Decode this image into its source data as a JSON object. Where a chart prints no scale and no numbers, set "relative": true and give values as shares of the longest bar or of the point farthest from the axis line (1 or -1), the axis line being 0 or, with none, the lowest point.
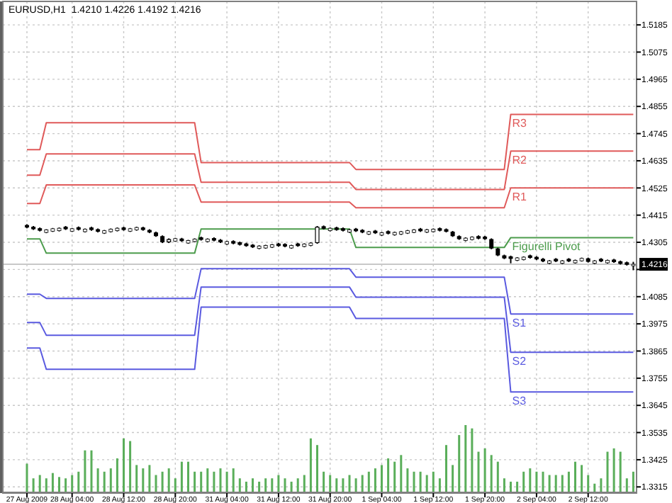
{
  "chart_data": [
    {
      "type": "candlestick",
      "title": "EURUSD,H1  1.4210 1.4226 1.4192 1.4216",
      "categories": [
        "27 Aug 2009",
        null,
        null,
        null,
        null,
        null,
        null,
        "28 Aug 04:00",
        null,
        null,
        null,
        null,
        null,
        null,
        null,
        "28 Aug 12:00",
        null,
        null,
        null,
        null,
        null,
        null,
        null,
        "28 Aug 20:00",
        null,
        null,
        null,
        null,
        null,
        null,
        null,
        "31 Aug 04:00",
        null,
        null,
        null,
        null,
        null,
        null,
        null,
        "31 Aug 12:00",
        null,
        null,
        null,
        null,
        null,
        null,
        null,
        "31 Aug 20:00",
        null,
        null,
        null,
        null,
        null,
        null,
        null,
        "1 Sep 04:00",
        null,
        null,
        null,
        null,
        null,
        null,
        null,
        "1 Sep 12:00",
        null,
        null,
        null,
        null,
        null,
        null,
        null,
        "1 Sep 20:00",
        null,
        null,
        null,
        null,
        null,
        null,
        null,
        "2 Sep 04:00",
        null,
        null,
        null,
        null,
        null,
        null,
        null,
        "2 Sep 12:00",
        null,
        null,
        null,
        null,
        null,
        null,
        null
      ],
      "ohlc": [
        [
          1.4375,
          1.4378,
          1.4362,
          1.4365
        ],
        [
          1.4368,
          1.4371,
          1.4355,
          1.4358
        ],
        [
          1.4362,
          1.4365,
          1.4349,
          1.4352
        ],
        [
          1.4345,
          1.4358,
          1.4342,
          1.4355
        ],
        [
          1.435,
          1.4363,
          1.4347,
          1.436
        ],
        [
          1.4352,
          1.4365,
          1.4349,
          1.4362
        ],
        [
          1.4368,
          1.4371,
          1.4355,
          1.4358
        ],
        [
          1.435,
          1.4363,
          1.4347,
          1.436
        ],
        [
          1.4366,
          1.4369,
          1.4353,
          1.4356
        ],
        [
          1.4348,
          1.4361,
          1.4345,
          1.4358
        ],
        [
          1.4365,
          1.4368,
          1.4352,
          1.4355
        ],
        [
          1.4358,
          1.4361,
          1.4345,
          1.4348
        ],
        [
          1.4342,
          1.4355,
          1.4339,
          1.4352
        ],
        [
          1.4348,
          1.4361,
          1.4345,
          1.4358
        ],
        [
          1.4352,
          1.4365,
          1.4349,
          1.4362
        ],
        [
          1.4365,
          1.4368,
          1.4352,
          1.4355
        ],
        [
          1.435,
          1.4363,
          1.4347,
          1.436
        ],
        [
          1.4355,
          1.4368,
          1.4352,
          1.4365
        ],
        [
          1.4365,
          1.4368,
          1.4352,
          1.4355
        ],
        [
          1.4355,
          1.4358,
          1.4342,
          1.4345
        ],
        [
          1.4345,
          1.4348,
          1.4327,
          1.433
        ],
        [
          1.433,
          1.4333,
          1.4302,
          1.4305
        ],
        [
          1.4305,
          1.4321,
          1.4302,
          1.4318
        ],
        [
          1.431,
          1.4323,
          1.4307,
          1.432
        ],
        [
          1.432,
          1.4323,
          1.4307,
          1.431
        ],
        [
          1.4302,
          1.4315,
          1.4299,
          1.4312
        ],
        [
          1.4308,
          1.4321,
          1.4305,
          1.4318
        ],
        [
          1.4325,
          1.4328,
          1.4312,
          1.4315
        ],
        [
          1.4308,
          1.4321,
          1.4305,
          1.4318
        ],
        [
          1.4322,
          1.4325,
          1.4309,
          1.4312
        ],
        [
          1.4315,
          1.4318,
          1.4302,
          1.4305
        ],
        [
          1.4298,
          1.4311,
          1.4295,
          1.4308
        ],
        [
          1.431,
          1.4313,
          1.4297,
          1.43
        ],
        [
          1.4305,
          1.4308,
          1.4292,
          1.4295
        ],
        [
          1.43,
          1.4303,
          1.4287,
          1.429
        ],
        [
          1.4295,
          1.4298,
          1.4282,
          1.4285
        ],
        [
          1.428,
          1.4293,
          1.4277,
          1.429
        ],
        [
          1.4282,
          1.4295,
          1.4279,
          1.4292
        ],
        [
          1.4285,
          1.4298,
          1.4282,
          1.4295
        ],
        [
          1.43,
          1.4303,
          1.4287,
          1.429
        ],
        [
          1.4298,
          1.4301,
          1.4285,
          1.4288
        ],
        [
          1.4282,
          1.4295,
          1.4279,
          1.4292
        ],
        [
          1.43,
          1.4303,
          1.4287,
          1.429
        ],
        [
          1.4288,
          1.4301,
          1.4285,
          1.4298
        ],
        [
          1.4292,
          1.4305,
          1.4289,
          1.4302
        ],
        [
          1.4302,
          1.4371,
          1.4299,
          1.4368
        ],
        [
          1.437,
          1.4373,
          1.4357,
          1.436
        ],
        [
          1.4352,
          1.4365,
          1.4349,
          1.4362
        ],
        [
          1.4365,
          1.4368,
          1.4352,
          1.4355
        ],
        [
          1.4362,
          1.4365,
          1.4349,
          1.4352
        ],
        [
          1.4346,
          1.4359,
          1.4343,
          1.4356
        ],
        [
          1.436,
          1.4363,
          1.4347,
          1.435
        ],
        [
          1.4355,
          1.4358,
          1.4342,
          1.4345
        ],
        [
          1.4338,
          1.4351,
          1.4335,
          1.4348
        ],
        [
          1.4352,
          1.4355,
          1.4339,
          1.4342
        ],
        [
          1.4334,
          1.4347,
          1.4331,
          1.4344
        ],
        [
          1.435,
          1.4353,
          1.4337,
          1.434
        ],
        [
          1.4335,
          1.4348,
          1.4332,
          1.4345
        ],
        [
          1.4338,
          1.4351,
          1.4335,
          1.4348
        ],
        [
          1.4342,
          1.4355,
          1.4339,
          1.4352
        ],
        [
          1.4345,
          1.4358,
          1.4342,
          1.4355
        ],
        [
          1.436,
          1.4363,
          1.4347,
          1.435
        ],
        [
          1.4346,
          1.4359,
          1.4343,
          1.4356
        ],
        [
          1.4348,
          1.4361,
          1.4345,
          1.4358
        ],
        [
          1.4362,
          1.4365,
          1.4349,
          1.4352
        ],
        [
          1.4358,
          1.4361,
          1.4345,
          1.4348
        ],
        [
          1.4348,
          1.4351,
          1.4327,
          1.433
        ],
        [
          1.433,
          1.4333,
          1.4315,
          1.4318
        ],
        [
          1.4312,
          1.4325,
          1.4309,
          1.4322
        ],
        [
          1.4316,
          1.4329,
          1.4313,
          1.4326
        ],
        [
          1.433,
          1.4333,
          1.4317,
          1.432
        ],
        [
          1.4328,
          1.4331,
          1.4315,
          1.4318
        ],
        [
          1.4318,
          1.4321,
          1.4277,
          1.428
        ],
        [
          1.428,
          1.4283,
          1.4249,
          1.4252
        ],
        [
          1.4252,
          1.4255,
          1.4237,
          1.424
        ],
        [
          1.4248,
          1.4251,
          1.422,
          1.4238
        ],
        [
          1.4232,
          1.4245,
          1.4229,
          1.4242
        ],
        [
          1.4235,
          1.4248,
          1.4232,
          1.4245
        ],
        [
          1.4252,
          1.4255,
          1.4239,
          1.4242
        ],
        [
          1.4246,
          1.4249,
          1.4233,
          1.4236
        ],
        [
          1.4238,
          1.4241,
          1.4225,
          1.4228
        ],
        [
          1.422,
          1.4233,
          1.4217,
          1.423
        ],
        [
          1.4238,
          1.4241,
          1.4225,
          1.4228
        ],
        [
          1.422,
          1.4233,
          1.4217,
          1.423
        ],
        [
          1.4238,
          1.4241,
          1.4225,
          1.4228
        ],
        [
          1.4222,
          1.4235,
          1.4219,
          1.4232
        ],
        [
          1.423,
          1.4243,
          1.4227,
          1.424
        ],
        [
          1.424,
          1.4243,
          1.4223,
          1.4226
        ],
        [
          1.422,
          1.4233,
          1.4217,
          1.423
        ],
        [
          1.4238,
          1.4241,
          1.4225,
          1.4228
        ],
        [
          1.4222,
          1.4235,
          1.4219,
          1.4232
        ],
        [
          1.4235,
          1.4238,
          1.4222,
          1.4225
        ],
        [
          1.4228,
          1.4231,
          1.4215,
          1.4218
        ],
        [
          1.4224,
          1.4227,
          1.4211,
          1.4214
        ],
        [
          1.421,
          1.4226,
          1.4192,
          1.4216
        ]
      ],
      "series": [
        {
          "type": "line",
          "name": "R3",
          "color": "#e05a5a",
          "values": [
            1.468,
            1.468,
            1.468,
            1.4789,
            1.4789,
            1.4789,
            1.4789,
            1.4789,
            1.4789,
            1.4789,
            1.4789,
            1.4789,
            1.4789,
            1.4789,
            1.4789,
            1.4789,
            1.4789,
            1.4789,
            1.4789,
            1.4789,
            1.4789,
            1.4789,
            1.4789,
            1.4789,
            1.4789,
            1.4789,
            1.4789,
            1.4628,
            1.4628,
            1.4628,
            1.4628,
            1.4628,
            1.4628,
            1.4628,
            1.4628,
            1.4628,
            1.4628,
            1.4628,
            1.4628,
            1.4628,
            1.4628,
            1.4628,
            1.4628,
            1.4628,
            1.4628,
            1.4628,
            1.4628,
            1.4628,
            1.4628,
            1.4628,
            1.4628,
            1.46,
            1.46,
            1.46,
            1.46,
            1.46,
            1.46,
            1.46,
            1.46,
            1.46,
            1.46,
            1.46,
            1.46,
            1.46,
            1.46,
            1.46,
            1.46,
            1.46,
            1.46,
            1.46,
            1.46,
            1.46,
            1.46,
            1.46,
            1.46,
            1.4823,
            1.4823,
            1.4823,
            1.4823,
            1.4823,
            1.4823,
            1.4823,
            1.4823,
            1.4823,
            1.4823,
            1.4823,
            1.4823,
            1.4823,
            1.4823,
            1.4823,
            1.4823,
            1.4823,
            1.4823,
            1.4823,
            1.4823
          ]
        },
        {
          "type": "line",
          "name": "R2",
          "color": "#e05a5a",
          "values": [
            1.4577,
            1.4577,
            1.4577,
            1.4663,
            1.4663,
            1.4663,
            1.4663,
            1.4663,
            1.4663,
            1.4663,
            1.4663,
            1.4663,
            1.4663,
            1.4663,
            1.4663,
            1.4663,
            1.4663,
            1.4663,
            1.4663,
            1.4663,
            1.4663,
            1.4663,
            1.4663,
            1.4663,
            1.4663,
            1.4663,
            1.4663,
            1.4548,
            1.4548,
            1.4548,
            1.4548,
            1.4548,
            1.4548,
            1.4548,
            1.4548,
            1.4548,
            1.4548,
            1.4548,
            1.4548,
            1.4548,
            1.4548,
            1.4548,
            1.4548,
            1.4548,
            1.4548,
            1.4548,
            1.4548,
            1.4548,
            1.4548,
            1.4548,
            1.4548,
            1.4519,
            1.4519,
            1.4519,
            1.4519,
            1.4519,
            1.4519,
            1.4519,
            1.4519,
            1.4519,
            1.4519,
            1.4519,
            1.4519,
            1.4519,
            1.4519,
            1.4519,
            1.4519,
            1.4519,
            1.4519,
            1.4519,
            1.4519,
            1.4519,
            1.4519,
            1.4519,
            1.4519,
            1.4674,
            1.4674,
            1.4674,
            1.4674,
            1.4674,
            1.4674,
            1.4674,
            1.4674,
            1.4674,
            1.4674,
            1.4674,
            1.4674,
            1.4674,
            1.4674,
            1.4674,
            1.4674,
            1.4674,
            1.4674,
            1.4674,
            1.4674
          ]
        },
        {
          "type": "line",
          "name": "R1",
          "color": "#e05a5a",
          "values": [
            1.4462,
            1.4462,
            1.4462,
            1.4537,
            1.4537,
            1.4537,
            1.4537,
            1.4537,
            1.4537,
            1.4537,
            1.4537,
            1.4537,
            1.4537,
            1.4537,
            1.4537,
            1.4537,
            1.4537,
            1.4537,
            1.4537,
            1.4537,
            1.4537,
            1.4537,
            1.4537,
            1.4537,
            1.4537,
            1.4537,
            1.4537,
            1.4468,
            1.4468,
            1.4468,
            1.4468,
            1.4468,
            1.4468,
            1.4468,
            1.4468,
            1.4468,
            1.4468,
            1.4468,
            1.4468,
            1.4468,
            1.4468,
            1.4468,
            1.4468,
            1.4468,
            1.4468,
            1.4468,
            1.4468,
            1.4468,
            1.4468,
            1.4468,
            1.4468,
            1.4445,
            1.4445,
            1.4445,
            1.4445,
            1.4445,
            1.4445,
            1.4445,
            1.4445,
            1.4445,
            1.4445,
            1.4445,
            1.4445,
            1.4445,
            1.4445,
            1.4445,
            1.4445,
            1.4445,
            1.4445,
            1.4445,
            1.4445,
            1.4445,
            1.4445,
            1.4445,
            1.4445,
            1.4525,
            1.4525,
            1.4525,
            1.4525,
            1.4525,
            1.4525,
            1.4525,
            1.4525,
            1.4525,
            1.4525,
            1.4525,
            1.4525,
            1.4525,
            1.4525,
            1.4525,
            1.4525,
            1.4525,
            1.4525,
            1.4525,
            1.4525
          ]
        },
        {
          "type": "line",
          "name": "Figurelli Pivot",
          "color": "#4c9c4c",
          "values": [
            1.4319,
            1.4319,
            1.4319,
            1.4261,
            1.4261,
            1.4261,
            1.4261,
            1.4261,
            1.4261,
            1.4261,
            1.4261,
            1.4261,
            1.4261,
            1.4261,
            1.4261,
            1.4261,
            1.4261,
            1.4261,
            1.4261,
            1.4261,
            1.4261,
            1.4261,
            1.4261,
            1.4261,
            1.4261,
            1.4261,
            1.4261,
            1.4359,
            1.4359,
            1.4359,
            1.4359,
            1.4359,
            1.4359,
            1.4359,
            1.4359,
            1.4359,
            1.4359,
            1.4359,
            1.4359,
            1.4359,
            1.4359,
            1.4359,
            1.4359,
            1.4359,
            1.4359,
            1.4359,
            1.4359,
            1.4359,
            1.4359,
            1.4359,
            1.4359,
            1.4284,
            1.4284,
            1.4284,
            1.4284,
            1.4284,
            1.4284,
            1.4284,
            1.4284,
            1.4284,
            1.4284,
            1.4284,
            1.4284,
            1.4284,
            1.4284,
            1.4284,
            1.4284,
            1.4284,
            1.4284,
            1.4284,
            1.4284,
            1.4284,
            1.4284,
            1.4284,
            1.4284,
            1.4324,
            1.4324,
            1.4324,
            1.4324,
            1.4324,
            1.4324,
            1.4324,
            1.4324,
            1.4324,
            1.4324,
            1.4324,
            1.4324,
            1.4324,
            1.4324,
            1.4324,
            1.4324,
            1.4324,
            1.4324,
            1.4324,
            1.4324
          ]
        },
        {
          "type": "line",
          "name": "S1",
          "color": "#5a5ae0",
          "values": [
            1.4095,
            1.4095,
            1.4095,
            1.4078,
            1.4078,
            1.4078,
            1.4078,
            1.4078,
            1.4078,
            1.4078,
            1.4078,
            1.4078,
            1.4078,
            1.4078,
            1.4078,
            1.4078,
            1.4078,
            1.4078,
            1.4078,
            1.4078,
            1.4078,
            1.4078,
            1.4078,
            1.4078,
            1.4078,
            1.4078,
            1.4078,
            1.4198,
            1.4198,
            1.4198,
            1.4198,
            1.4198,
            1.4198,
            1.4198,
            1.4198,
            1.4198,
            1.4198,
            1.4198,
            1.4198,
            1.4198,
            1.4198,
            1.4198,
            1.4198,
            1.4198,
            1.4198,
            1.4198,
            1.4198,
            1.4198,
            1.4198,
            1.4198,
            1.4198,
            1.4164,
            1.4164,
            1.4164,
            1.4164,
            1.4164,
            1.4164,
            1.4164,
            1.4164,
            1.4164,
            1.4164,
            1.4164,
            1.4164,
            1.4164,
            1.4164,
            1.4164,
            1.4164,
            1.4164,
            1.4164,
            1.4164,
            1.4164,
            1.4164,
            1.4164,
            1.4164,
            1.4164,
            1.4015,
            1.4015,
            1.4015,
            1.4015,
            1.4015,
            1.4015,
            1.4015,
            1.4015,
            1.4015,
            1.4015,
            1.4015,
            1.4015,
            1.4015,
            1.4015,
            1.4015,
            1.4015,
            1.4015,
            1.4015,
            1.4015,
            1.4015
          ]
        },
        {
          "type": "line",
          "name": "S2",
          "color": "#5a5ae0",
          "values": [
            1.398,
            1.398,
            1.398,
            1.3929,
            1.3929,
            1.3929,
            1.3929,
            1.3929,
            1.3929,
            1.3929,
            1.3929,
            1.3929,
            1.3929,
            1.3929,
            1.3929,
            1.3929,
            1.3929,
            1.3929,
            1.3929,
            1.3929,
            1.3929,
            1.3929,
            1.3929,
            1.3929,
            1.3929,
            1.3929,
            1.3929,
            1.4124,
            1.4124,
            1.4124,
            1.4124,
            1.4124,
            1.4124,
            1.4124,
            1.4124,
            1.4124,
            1.4124,
            1.4124,
            1.4124,
            1.4124,
            1.4124,
            1.4124,
            1.4124,
            1.4124,
            1.4124,
            1.4124,
            1.4124,
            1.4124,
            1.4124,
            1.4124,
            1.4124,
            1.4083,
            1.4083,
            1.4083,
            1.4083,
            1.4083,
            1.4083,
            1.4083,
            1.4083,
            1.4083,
            1.4083,
            1.4083,
            1.4083,
            1.4083,
            1.4083,
            1.4083,
            1.4083,
            1.4083,
            1.4083,
            1.4083,
            1.4083,
            1.4083,
            1.4083,
            1.4083,
            1.4083,
            1.386,
            1.386,
            1.386,
            1.386,
            1.386,
            1.386,
            1.386,
            1.386,
            1.386,
            1.386,
            1.386,
            1.386,
            1.386,
            1.386,
            1.386,
            1.386,
            1.386,
            1.386,
            1.386,
            1.386
          ]
        },
        {
          "type": "line",
          "name": "S3",
          "color": "#5a5ae0",
          "values": [
            1.3877,
            1.3877,
            1.3877,
            1.3791,
            1.3791,
            1.3791,
            1.3791,
            1.3791,
            1.3791,
            1.3791,
            1.3791,
            1.3791,
            1.3791,
            1.3791,
            1.3791,
            1.3791,
            1.3791,
            1.3791,
            1.3791,
            1.3791,
            1.3791,
            1.3791,
            1.3791,
            1.3791,
            1.3791,
            1.3791,
            1.3791,
            1.4043,
            1.4043,
            1.4043,
            1.4043,
            1.4043,
            1.4043,
            1.4043,
            1.4043,
            1.4043,
            1.4043,
            1.4043,
            1.4043,
            1.4043,
            1.4043,
            1.4043,
            1.4043,
            1.4043,
            1.4043,
            1.4043,
            1.4043,
            1.4043,
            1.4043,
            1.4043,
            1.4043,
            1.3997,
            1.3997,
            1.3997,
            1.3997,
            1.3997,
            1.3997,
            1.3997,
            1.3997,
            1.3997,
            1.3997,
            1.3997,
            1.3997,
            1.3997,
            1.3997,
            1.3997,
            1.3997,
            1.3997,
            1.3997,
            1.3997,
            1.3997,
            1.3997,
            1.3997,
            1.3997,
            1.3997,
            1.3699,
            1.3699,
            1.3699,
            1.3699,
            1.3699,
            1.3699,
            1.3699,
            1.3699,
            1.3699,
            1.3699,
            1.3699,
            1.3699,
            1.3699,
            1.3699,
            1.3699,
            1.3699,
            1.3699,
            1.3699,
            1.3699,
            1.3699
          ]
        }
      ],
      "ylim": [
        1.329,
        1.528
      ],
      "yticks": [
        1.5185,
        1.5075,
        1.4965,
        1.4855,
        1.4745,
        1.4635,
        1.4525,
        1.4415,
        1.4305,
        {
          "value": 1.4195,
          "label": null
        },
        1.4085,
        1.3975,
        1.3865,
        1.3755,
        1.3645,
        1.3535,
        1.3425,
        1.3315
      ],
      "ref_lines": [
        {
          "axis": "y",
          "value": 1.4216,
          "label": "1.4216",
          "color": "#c8c8c8"
        }
      ],
      "grid": true
    },
    {
      "type": "bar",
      "relative": true,
      "color": "#5aae5a",
      "categories": [
        null,
        null,
        null,
        null,
        null,
        null,
        null,
        null,
        null,
        null,
        null,
        null,
        null,
        null,
        null,
        null,
        null,
        null,
        null,
        null,
        null,
        null,
        null,
        null,
        null,
        null,
        null,
        null,
        null,
        null,
        null,
        null,
        null,
        null,
        null,
        null,
        null,
        null,
        null,
        null,
        null,
        null,
        null,
        null,
        null,
        null,
        null,
        null,
        null,
        null,
        null,
        null,
        null,
        null,
        null,
        null,
        null,
        null,
        null,
        null,
        null,
        null,
        null,
        null,
        null,
        null,
        null,
        null,
        null,
        null,
        null,
        null,
        null,
        null,
        null,
        null,
        null,
        null,
        null,
        null,
        null,
        null,
        null,
        null,
        null,
        null,
        null,
        null,
        null,
        null,
        null,
        null,
        null,
        null,
        null
      ],
      "values": [
        0.42,
        0.2,
        0.25,
        0.2,
        0.28,
        0.22,
        0.2,
        0.25,
        0.3,
        0.62,
        0.62,
        0.35,
        0.3,
        0.35,
        0.5,
        0.8,
        0.76,
        0.4,
        0.35,
        0.4,
        0.25,
        0.3,
        0.35,
        0.2,
        0.45,
        0.45,
        0.3,
        0.3,
        0.35,
        0.3,
        0.35,
        0.3,
        0.35,
        0.2,
        0.15,
        0.2,
        0.15,
        0.2,
        0.2,
        0.25,
        0.2,
        0.15,
        0.2,
        0.25,
        0.8,
        0.7,
        0.3,
        0.25,
        0.2,
        0.2,
        0.25,
        0.2,
        0.25,
        0.3,
        0.35,
        0.4,
        0.5,
        0.45,
        0.55,
        0.35,
        0.3,
        0.3,
        0.25,
        0.3,
        0.2,
        0.7,
        0.4,
        0.85,
        1,
        0.95,
        0.6,
        0.65,
        0.55,
        0.45,
        0.2,
        0.15,
        0.15,
        0.3,
        0.35,
        0.3,
        0.3,
        0.25,
        0.25,
        0.25,
        0.3,
        0.45,
        0.4,
        0.25,
        0.12,
        0.2,
        0.6,
        0.65,
        0.6,
        0.2,
        0.3
      ]
    }
  ]
}
